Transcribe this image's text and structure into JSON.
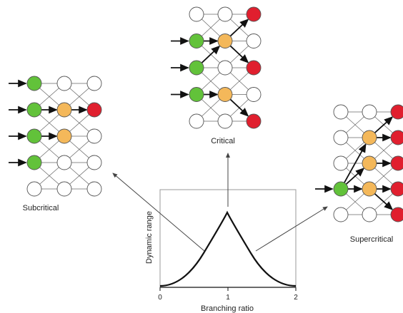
{
  "labels": {
    "subcritical": "Subcritical",
    "critical": "Critical",
    "supercritical": "Supercritical"
  },
  "plot": {
    "xlabel": "Branching ratio",
    "ylabel": "Dynamic range",
    "x_ticks": [
      "0",
      "1",
      "2"
    ]
  },
  "colors": {
    "green": "#62c23a",
    "orange": "#f4b85a",
    "red": "#e01f2e",
    "white": "#ffffff",
    "stroke": "#555555"
  },
  "networks": {
    "subcritical": {
      "green": [
        [
          0,
          0
        ],
        [
          0,
          1
        ],
        [
          0,
          2
        ],
        [
          0,
          3
        ]
      ],
      "orange": [
        [
          1,
          1
        ],
        [
          1,
          2
        ]
      ],
      "red": [
        [
          2,
          1
        ]
      ]
    },
    "critical": {
      "green": [
        [
          0,
          1
        ],
        [
          0,
          2
        ],
        [
          0,
          3
        ]
      ],
      "orange": [
        [
          1,
          1
        ],
        [
          1,
          3
        ]
      ],
      "red": [
        [
          2,
          0
        ],
        [
          2,
          2
        ],
        [
          2,
          4
        ]
      ]
    },
    "supercritical": {
      "green": [
        [
          0,
          3
        ]
      ],
      "orange": [
        [
          1,
          1
        ],
        [
          1,
          2
        ],
        [
          1,
          3
        ]
      ],
      "red": [
        [
          2,
          0
        ],
        [
          2,
          1
        ],
        [
          2,
          2
        ],
        [
          2,
          3
        ],
        [
          2,
          4
        ]
      ]
    }
  }
}
